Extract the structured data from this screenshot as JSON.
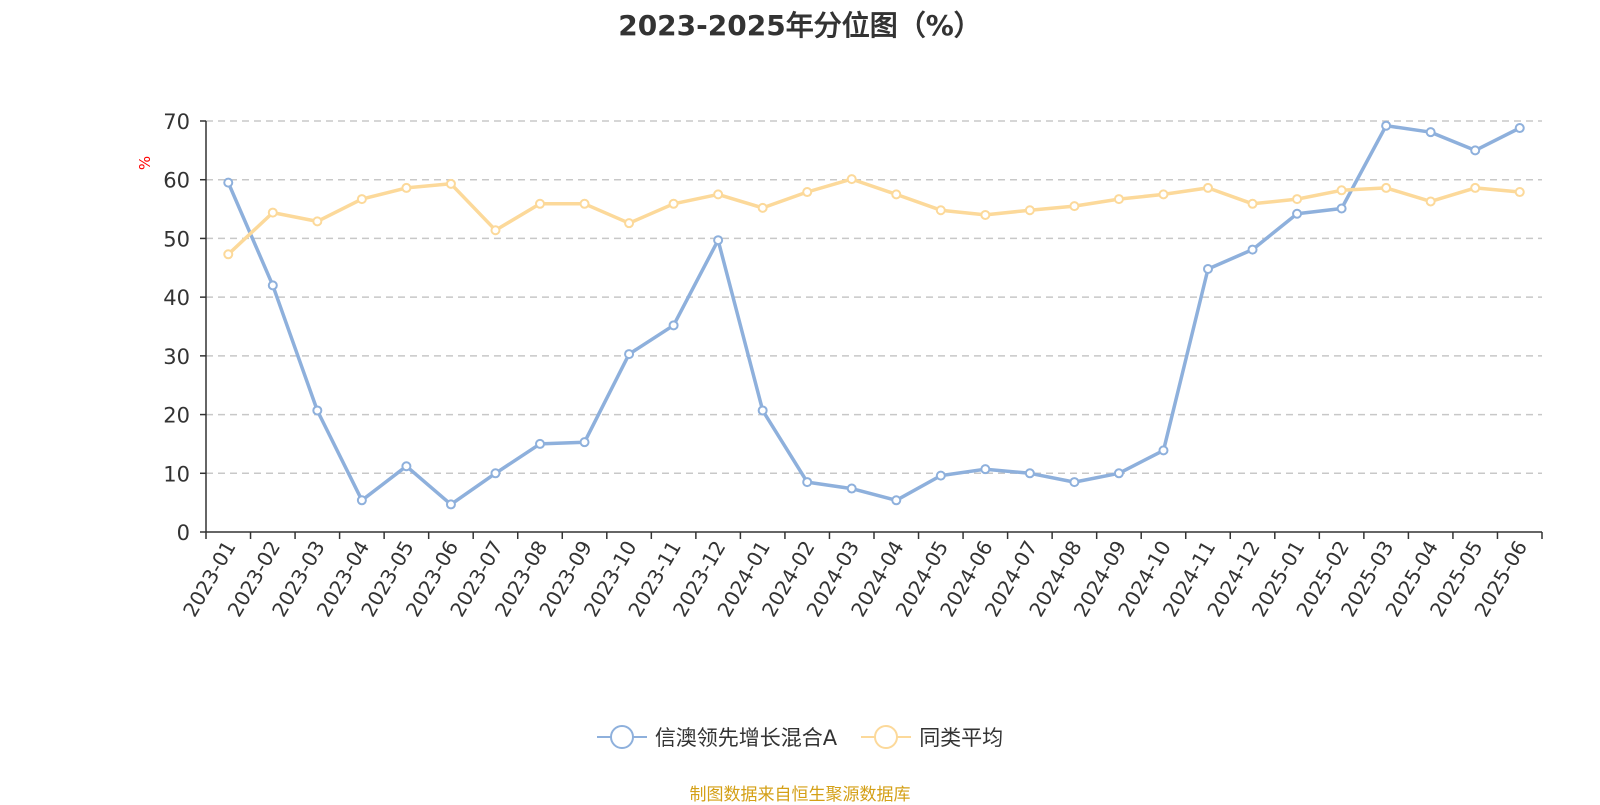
{
  "chart_data": {
    "type": "line",
    "title": "2023-2025年分位图（%）",
    "ylabel": "%",
    "ylim": [
      0,
      70
    ],
    "yticks": [
      0,
      10,
      20,
      30,
      40,
      50,
      60,
      70
    ],
    "grid": true,
    "legend_position": "bottom",
    "categories": [
      "2023-01",
      "2023-02",
      "2023-03",
      "2023-04",
      "2023-05",
      "2023-06",
      "2023-07",
      "2023-08",
      "2023-09",
      "2023-10",
      "2023-11",
      "2023-12",
      "2024-01",
      "2024-02",
      "2024-03",
      "2024-04",
      "2024-05",
      "2024-06",
      "2024-07",
      "2024-08",
      "2024-09",
      "2024-10",
      "2024-11",
      "2024-12",
      "2025-01",
      "2025-02",
      "2025-03",
      "2025-04",
      "2025-05",
      "2025-06"
    ],
    "series": [
      {
        "name": "信澳领先增长混合A",
        "color": "#8eb0dc",
        "values": [
          59.5,
          42.0,
          20.7,
          5.4,
          11.2,
          4.7,
          10.0,
          15.0,
          15.3,
          30.3,
          35.2,
          49.7,
          20.7,
          8.5,
          7.4,
          5.4,
          9.6,
          10.7,
          10.0,
          8.5,
          10.0,
          13.9,
          44.8,
          48.1,
          54.2,
          55.1,
          69.2,
          68.1,
          65.0,
          68.8
        ]
      },
      {
        "name": "同类平均",
        "color": "#fcd99a",
        "values": [
          47.3,
          54.4,
          52.9,
          56.7,
          58.6,
          59.3,
          51.4,
          55.9,
          55.9,
          52.6,
          55.9,
          57.5,
          55.2,
          57.9,
          60.1,
          57.5,
          54.8,
          54.0,
          54.8,
          55.5,
          56.7,
          57.5,
          58.6,
          55.9,
          56.7,
          58.2,
          58.6,
          56.3,
          58.6,
          57.9
        ]
      }
    ]
  },
  "footer": {
    "source": "制图数据来自恒生聚源数据库"
  }
}
